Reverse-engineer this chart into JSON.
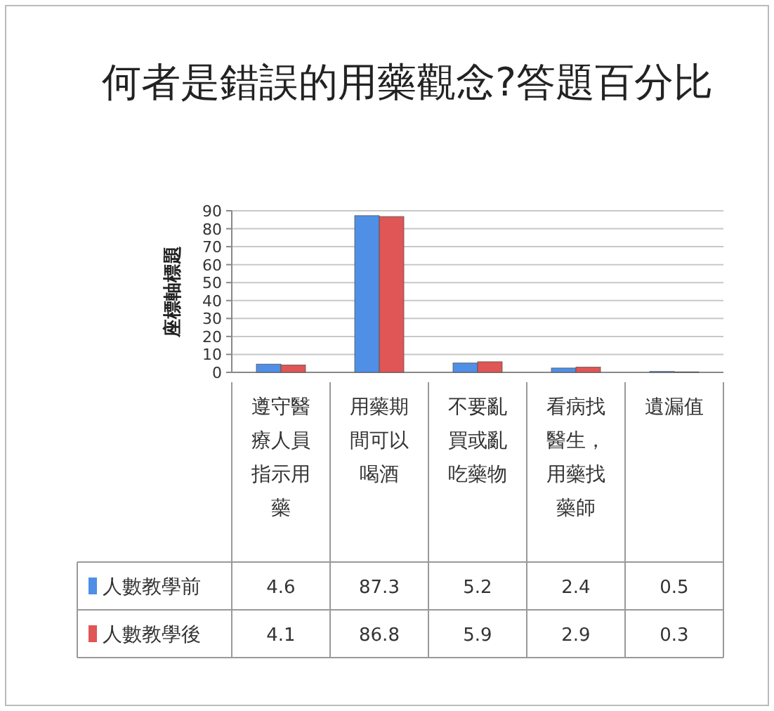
{
  "chart_data": {
    "type": "bar",
    "title": "何者是錯誤的用藥觀念?答題百分比",
    "ylabel": "座標軸標題",
    "categories": [
      "遵守醫療人員指示用藥",
      "用藥期間可以喝酒",
      "不要亂買或亂吃藥物",
      "看病找醫生，用藥找藥師",
      "遺漏值"
    ],
    "series": [
      {
        "name": "人數教學前",
        "color": "#4f8fe6",
        "values": [
          4.6,
          87.3,
          5.2,
          2.4,
          0.5
        ]
      },
      {
        "name": "人數教學後",
        "color": "#e05555",
        "values": [
          4.1,
          86.8,
          5.9,
          2.9,
          0.3
        ]
      }
    ],
    "ylim": [
      0,
      90
    ],
    "yticks": [
      0,
      10,
      20,
      30,
      40,
      50,
      60,
      70,
      80,
      90
    ],
    "grid": "y",
    "legend": "bottom",
    "data_labels": true
  }
}
